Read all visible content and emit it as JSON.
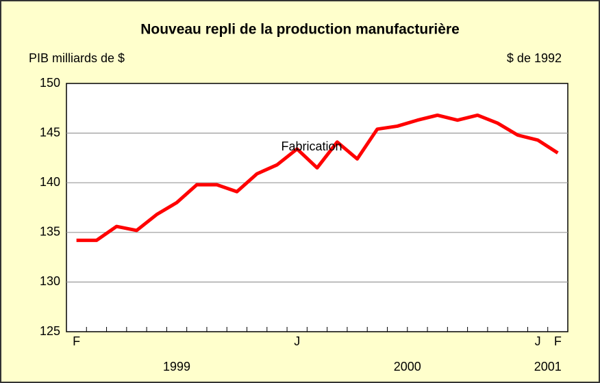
{
  "chart_data": {
    "type": "line",
    "title": "Nouveau repli de la production manufacturière",
    "y_label": "PIB milliards de $",
    "units_note": "$ de 1992",
    "annotation": "Fabrication",
    "categories": [
      "F",
      null,
      null,
      null,
      null,
      null,
      null,
      null,
      null,
      null,
      null,
      "J",
      null,
      null,
      null,
      null,
      null,
      null,
      null,
      null,
      null,
      null,
      null,
      "J",
      "F"
    ],
    "x_groups": [
      {
        "label": "1999",
        "from": 0,
        "to": 10
      },
      {
        "label": "2000",
        "from": 11,
        "to": 22
      },
      {
        "label": "2001",
        "from": 23,
        "to": 24
      }
    ],
    "series": [
      {
        "name": "Fabrication",
        "color": "#ff0000",
        "values": [
          134.2,
          134.2,
          135.6,
          135.2,
          136.8,
          138.0,
          139.8,
          139.8,
          139.1,
          140.9,
          141.8,
          143.4,
          141.5,
          144.1,
          142.4,
          145.4,
          145.7,
          146.3,
          146.8,
          146.3,
          146.8,
          146.0,
          144.8,
          144.3,
          143.0
        ]
      }
    ],
    "ylim": [
      125,
      150
    ],
    "yticks": [
      125,
      130,
      135,
      140,
      145,
      150
    ],
    "grid": true
  }
}
